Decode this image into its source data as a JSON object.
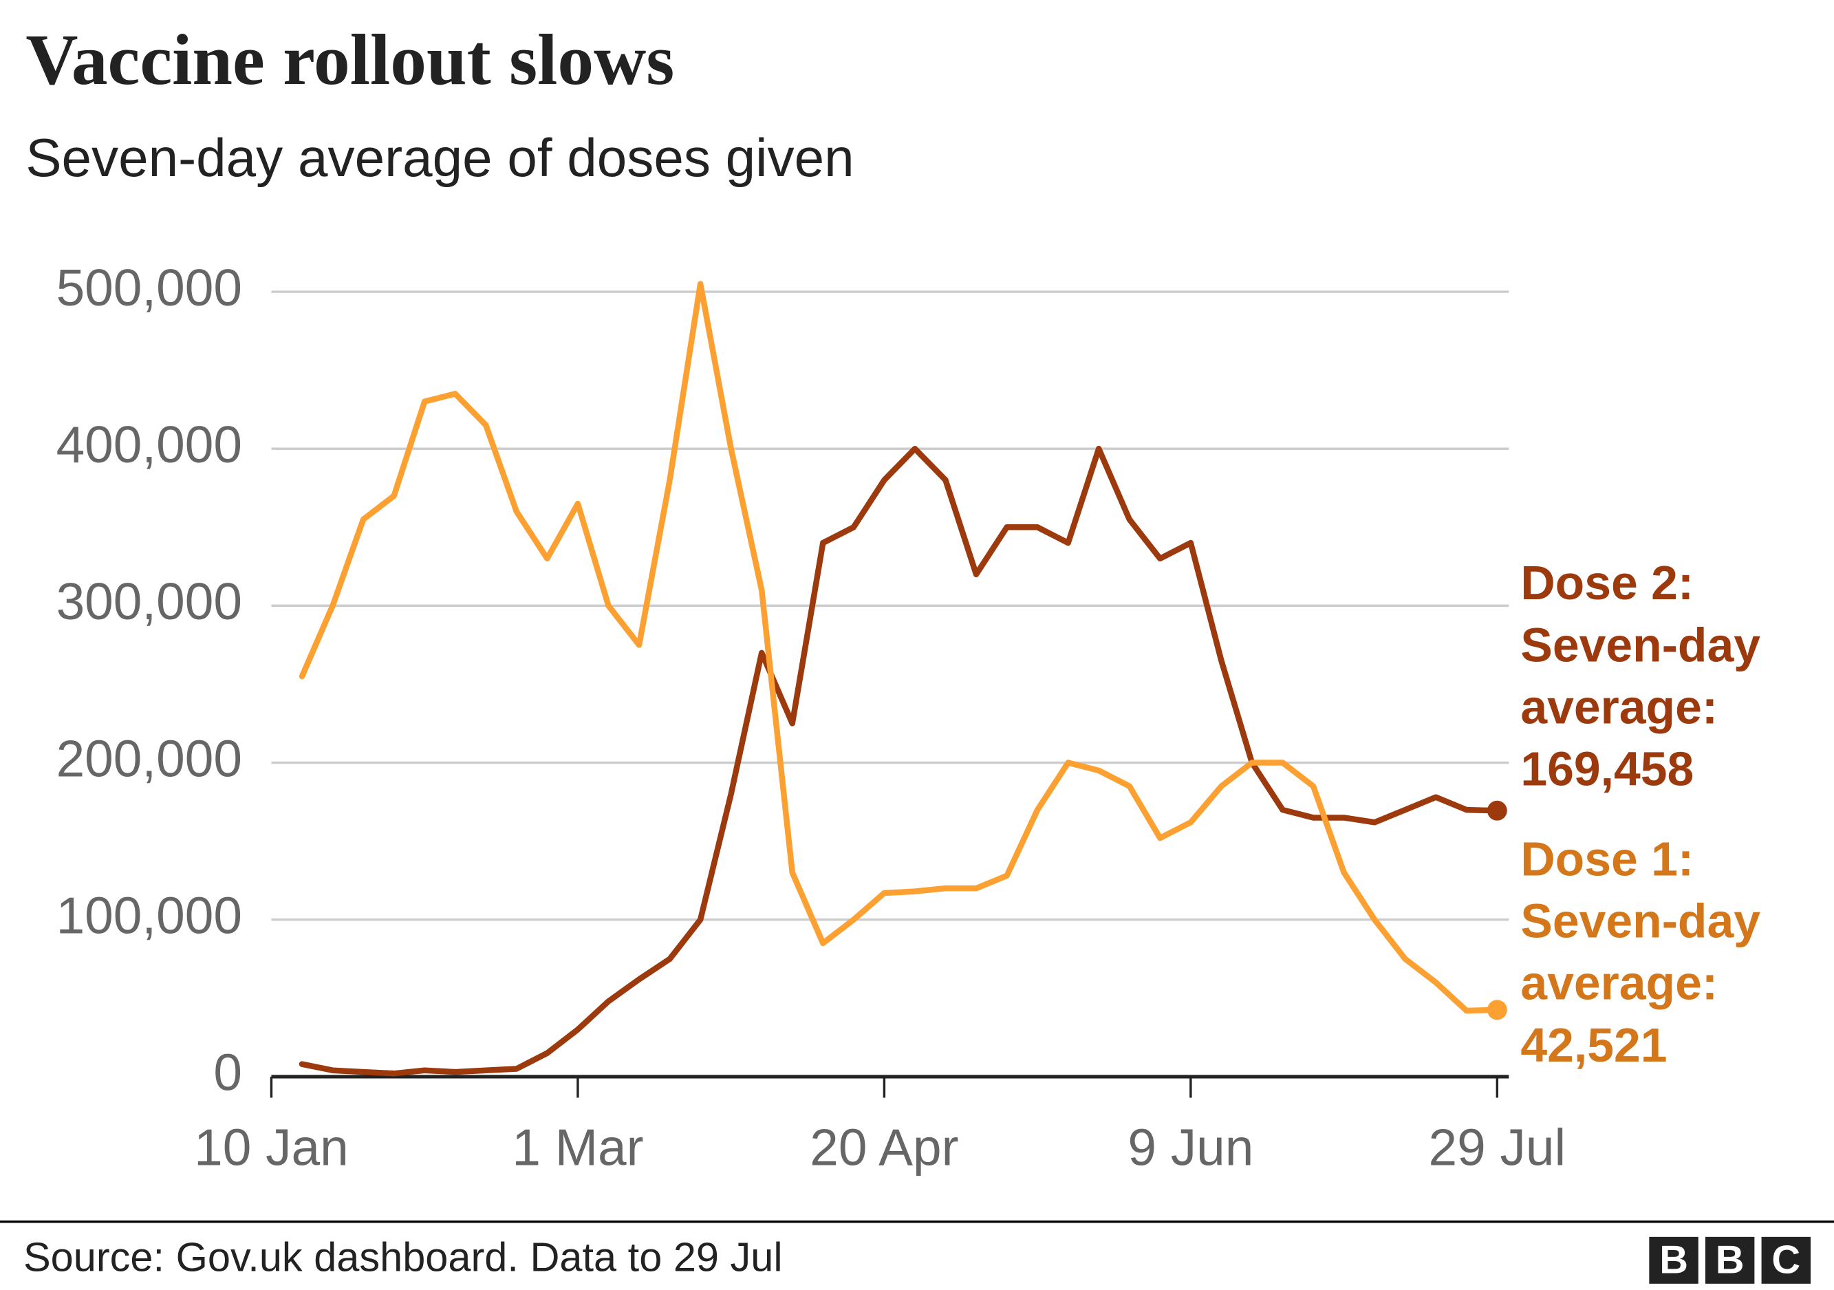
{
  "chart_data": {
    "type": "line",
    "title": "Vaccine rollout slows",
    "subtitle": "Seven-day average of doses given",
    "source": "Source: Gov.uk dashboard. Data to 29 Jul",
    "logo": [
      "B",
      "B",
      "C"
    ],
    "categories": [
      "10 Jan",
      null,
      null,
      null,
      null,
      null,
      null,
      null,
      null,
      null,
      "1 Mar",
      null,
      null,
      null,
      null,
      null,
      null,
      null,
      null,
      null,
      "20 Apr",
      null,
      null,
      null,
      null,
      null,
      null,
      null,
      null,
      null,
      "9 Jun",
      null,
      null,
      null,
      null,
      null,
      null,
      null,
      null,
      null,
      "29 Jul"
    ],
    "ylim": [
      0,
      500000
    ],
    "yticks": [
      0,
      {
        "value": 100000,
        "label": "100,000"
      },
      {
        "value": 200000,
        "label": "200,000"
      },
      {
        "value": 300000,
        "label": "300,000"
      },
      {
        "value": 400000,
        "label": "400,000"
      },
      {
        "value": 500000,
        "label": "500,000"
      }
    ],
    "grid": true,
    "series": [
      {
        "name": "Dose 2: Seven-day average:",
        "color": "#9c3a0e",
        "label_color": "#9c3a0e",
        "values": [
          null,
          8000,
          4000,
          3000,
          2000,
          4000,
          3000,
          4000,
          5000,
          15000,
          30000,
          48000,
          62000,
          75000,
          100000,
          180000,
          270000,
          225000,
          340000,
          350000,
          380000,
          400000,
          380000,
          320000,
          350000,
          350000,
          340000,
          400000,
          355000,
          330000,
          340000,
          265000,
          200000,
          170000,
          165000,
          165000,
          162000,
          170000,
          178000,
          170000,
          169458
        ],
        "value_labels": [
          null,
          null,
          null,
          null,
          null,
          null,
          null,
          null,
          null,
          null,
          null,
          null,
          null,
          null,
          null,
          null,
          null,
          null,
          null,
          null,
          null,
          null,
          null,
          null,
          null,
          null,
          null,
          null,
          null,
          null,
          null,
          null,
          null,
          null,
          null,
          null,
          null,
          null,
          null,
          null,
          "169,458"
        ]
      },
      {
        "name": "Dose 1: Seven-day average:",
        "color": "#fca131",
        "label_color": "#d4761a",
        "values": [
          null,
          255000,
          300000,
          355000,
          370000,
          430000,
          435000,
          415000,
          360000,
          330000,
          365000,
          300000,
          275000,
          380000,
          505000,
          400000,
          310000,
          130000,
          85000,
          100000,
          117000,
          118000,
          120000,
          120000,
          128000,
          170000,
          200000,
          195000,
          185000,
          152000,
          162000,
          185000,
          200000,
          200000,
          185000,
          130000,
          100000,
          75000,
          60000,
          42000,
          42521
        ],
        "value_labels": [
          null,
          null,
          null,
          null,
          null,
          null,
          null,
          null,
          null,
          null,
          null,
          null,
          null,
          null,
          null,
          null,
          null,
          null,
          null,
          null,
          null,
          null,
          null,
          null,
          null,
          null,
          null,
          null,
          null,
          null,
          null,
          null,
          null,
          null,
          null,
          null,
          null,
          null,
          null,
          null,
          "42,521"
        ]
      }
    ]
  }
}
